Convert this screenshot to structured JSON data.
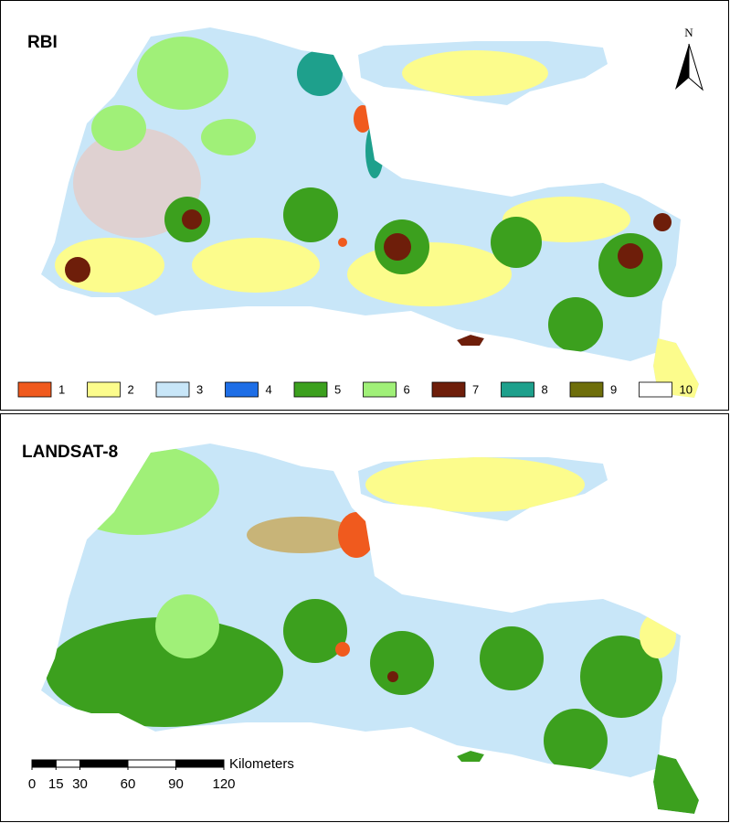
{
  "panels": [
    {
      "title": "RBI"
    },
    {
      "title": "LANDSAT-8"
    }
  ],
  "north_arrow": "N",
  "legend": [
    {
      "label": "1",
      "color": "#f05a1e"
    },
    {
      "label": "2",
      "color": "#fcfc8c"
    },
    {
      "label": "3",
      "color": "#c8e6f8"
    },
    {
      "label": "4",
      "color": "#1e6ee6"
    },
    {
      "label": "5",
      "color": "#3ca01e"
    },
    {
      "label": "6",
      "color": "#a0f078"
    },
    {
      "label": "7",
      "color": "#6e1e0a"
    },
    {
      "label": "8",
      "color": "#1ea08c"
    },
    {
      "label": "9",
      "color": "#6e6e0a"
    },
    {
      "label": "10",
      "color": "#ffffff"
    }
  ],
  "scale_bar": {
    "unit": "Kilometers",
    "ticks": [
      0,
      15,
      30,
      60,
      90,
      120
    ]
  }
}
